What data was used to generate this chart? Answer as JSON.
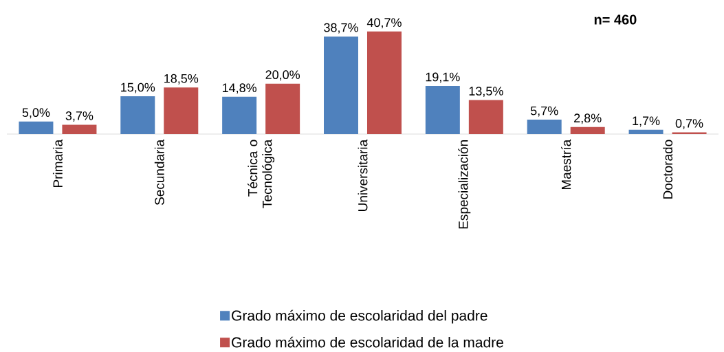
{
  "chart_data": {
    "type": "bar",
    "categories": [
      "Primaria",
      "Secundaria",
      "Técnica o Tecnológica",
      "Universitaria",
      "Especialización",
      "Maestría",
      "Doctorado"
    ],
    "series": [
      {
        "name": "Grado máximo de escolaridad del padre",
        "color": "#4f81bd",
        "values": [
          5.0,
          15.0,
          14.8,
          38.7,
          19.1,
          5.7,
          1.7
        ],
        "value_labels": [
          "5,0%",
          "15,0%",
          "14,8%",
          "38,7%",
          "19,1%",
          "5,7%",
          "1,7%"
        ]
      },
      {
        "name": "Grado máximo de escolaridad de la madre",
        "color": "#c0504d",
        "values": [
          3.7,
          18.5,
          20.0,
          40.7,
          13.5,
          2.8,
          0.7
        ],
        "value_labels": [
          "3,7%",
          "18,5%",
          "20,0%",
          "40,7%",
          "13,5%",
          "2,8%",
          "0,7%"
        ]
      }
    ],
    "legend": "bottom",
    "annotations": [
      "n= 460"
    ]
  }
}
